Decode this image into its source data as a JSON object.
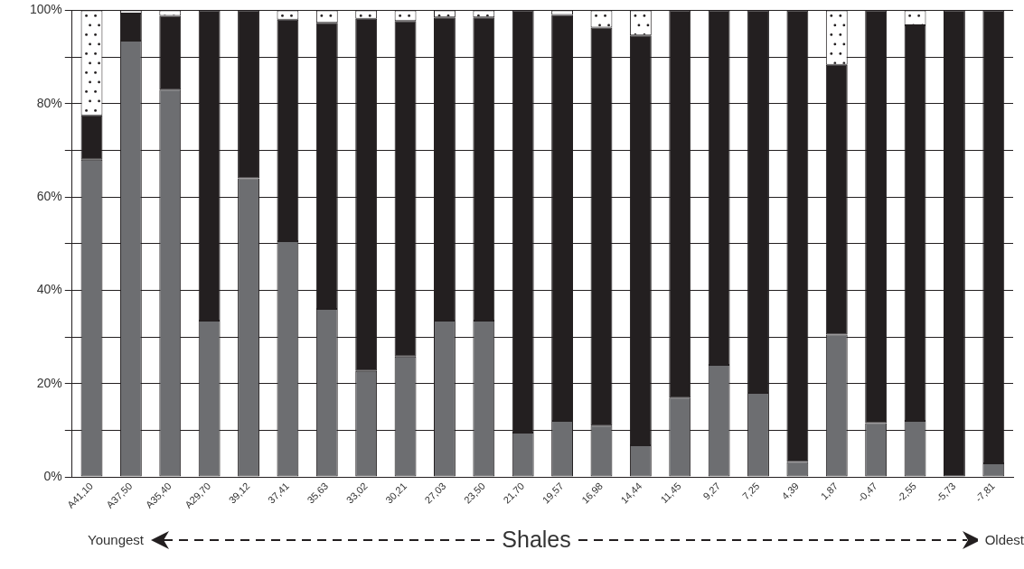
{
  "chart_data": {
    "type": "bar",
    "stacked": true,
    "xlabel": "Shales",
    "annotations": [
      "Youngest",
      "Oldest"
    ],
    "categories": [
      "A41,10",
      "A37,50",
      "A35,40",
      "A29,70",
      "39,12",
      "37,41",
      "35,63",
      "33,02",
      "30,21",
      "27,03",
      "23,50",
      "21,70",
      "19,57",
      "16,98",
      "14,44",
      "11,45",
      "9,27",
      "7,25",
      "4,39",
      "1,87",
      "-0,47",
      "-2,55",
      "-5,73",
      "-7,81"
    ],
    "series": [
      {
        "color": "#6d6e71",
        "values": [
          68,
          93.5,
          83,
          33.5,
          64,
          50.5,
          36,
          22.7,
          25.8,
          33.5,
          33.5,
          9.5,
          12,
          11,
          6.8,
          17,
          24,
          18,
          3.2,
          30.5,
          11.5,
          12,
          0,
          2.9
        ]
      },
      {
        "color": "#231f20",
        "values": [
          9.5,
          5.8,
          15.8,
          66.5,
          36,
          47.5,
          61.3,
          75.5,
          71.9,
          65,
          65,
          90.5,
          87,
          85.3,
          87.8,
          83,
          76,
          82,
          96.8,
          57.8,
          88.5,
          84.8,
          100,
          97.1
        ]
      },
      {
        "color": "#ffffff",
        "values": [
          22.5,
          0.7,
          1.2,
          0,
          0,
          2,
          2.7,
          1.8,
          2.3,
          1.5,
          1.5,
          0,
          1,
          3.7,
          5.4,
          0,
          0,
          0,
          0,
          11.7,
          0,
          3.2,
          0,
          0
        ]
      }
    ],
    "ylim": [
      0,
      100
    ],
    "yticks": [
      {
        "value": 0,
        "label": "0%"
      },
      {
        "value": 10,
        "label": null
      },
      {
        "value": 20,
        "label": "20%"
      },
      {
        "value": 30,
        "label": null
      },
      {
        "value": 40,
        "label": "40%"
      },
      {
        "value": 50,
        "label": null
      },
      {
        "value": 60,
        "label": "60%"
      },
      {
        "value": 70,
        "label": null
      },
      {
        "value": 80,
        "label": "80%"
      },
      {
        "value": 90,
        "label": null
      },
      {
        "value": 100,
        "label": "100%"
      }
    ],
    "grid": "y",
    "legend": false
  }
}
